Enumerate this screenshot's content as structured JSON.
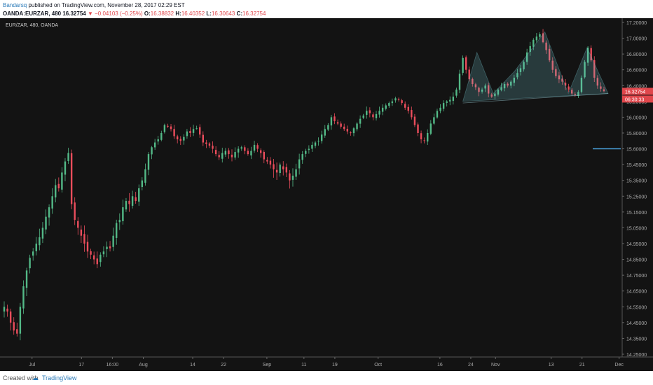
{
  "header": {
    "author": "Bandarsq",
    "published_text": " published on TradingView.com, November 28, 2017 02:29 EST",
    "symbol_line": "OANDA:EURZAR, 480",
    "last": "16.32754",
    "change": "−0.04103 (−0.25%)",
    "o_label": "O:",
    "o_val": "16.38832",
    "h_label": "H:",
    "h_val": "16.40352",
    "l_label": "L:",
    "l_val": "16.30643",
    "c_label": "C:",
    "c_val": "16.32754"
  },
  "footer": {
    "created_label": "Created with",
    "brand_icon": "tradingview-logo-icon",
    "brand_name": "TradingView"
  },
  "chart_data": {
    "type": "candlestick",
    "symbol_label": "EUR/ZAR, 480, OANDA",
    "ylim": [
      14.2,
      17.2
    ],
    "y_ticks": [
      "17.20000",
      "17.00000",
      "16.80000",
      "16.60000",
      "16.40000",
      "16.20000",
      "16.00000",
      "15.80000",
      "15.60000",
      "15.45000",
      "15.35000",
      "15.25000",
      "15.15000",
      "15.05000",
      "14.95000",
      "14.85000",
      "14.75000",
      "14.65000",
      "14.55000",
      "14.45000",
      "14.35000",
      "14.25000"
    ],
    "x_ticks": [
      "Jul",
      "17",
      "16:00",
      "Aug",
      "14",
      "22",
      "Sep",
      "11",
      "19",
      "Oct",
      "16",
      "24",
      "Nov",
      "13",
      "21",
      "Dec"
    ],
    "x_tick_positions": [
      0.07,
      0.15,
      0.2,
      0.25,
      0.33,
      0.38,
      0.45,
      0.51,
      0.56,
      0.63,
      0.73,
      0.78,
      0.82,
      0.91,
      0.96,
      1.02
    ],
    "price_label_last": "16.32754",
    "price_label_timer": "06:30:33",
    "horizontal_line_price": 15.6,
    "closes": [
      14.55,
      14.52,
      14.45,
      14.4,
      14.38,
      14.55,
      14.68,
      14.78,
      14.86,
      14.9,
      14.95,
      14.99,
      15.05,
      15.12,
      15.18,
      15.25,
      15.32,
      15.3,
      15.4,
      15.48,
      15.56,
      15.2,
      15.1,
      15.05,
      15.0,
      14.95,
      14.9,
      14.88,
      14.85,
      14.82,
      14.88,
      14.9,
      14.93,
      14.92,
      15.0,
      15.08,
      15.1,
      15.18,
      15.22,
      15.2,
      15.25,
      15.22,
      15.3,
      15.35,
      15.42,
      15.55,
      15.62,
      15.68,
      15.72,
      15.8,
      15.9,
      15.88,
      15.85,
      15.76,
      15.72,
      15.7,
      15.75,
      15.82,
      15.8,
      15.85,
      15.86,
      15.78,
      15.68,
      15.66,
      15.64,
      15.6,
      15.55,
      15.52,
      15.56,
      15.58,
      15.55,
      15.52,
      15.57,
      15.6,
      15.62,
      15.58,
      15.55,
      15.58,
      15.65,
      15.6,
      15.56,
      15.5,
      15.48,
      15.45,
      15.42,
      15.4,
      15.45,
      15.42,
      15.4,
      15.35,
      15.38,
      15.42,
      15.5,
      15.55,
      15.58,
      15.6,
      15.65,
      15.68,
      15.7,
      15.78,
      15.85,
      15.9,
      16.0,
      15.95,
      15.92,
      15.88,
      15.85,
      15.82,
      15.8,
      15.86,
      15.92,
      15.98,
      16.02,
      16.08,
      16.05,
      16.0,
      16.04,
      16.08,
      16.12,
      16.15,
      16.18,
      16.2,
      16.24,
      16.22,
      16.18,
      16.12,
      16.08,
      16.0,
      15.9,
      15.8,
      15.72,
      15.7,
      15.8,
      15.92,
      16.0,
      16.08,
      16.12,
      16.18,
      16.2,
      16.22,
      16.26,
      16.35,
      16.55,
      16.75,
      16.6,
      16.48,
      16.42,
      16.38,
      16.32,
      16.35,
      16.4,
      16.3,
      16.26,
      16.3,
      16.35,
      16.38,
      16.42,
      16.4,
      16.45,
      16.5,
      16.56,
      16.62,
      16.7,
      16.82,
      16.9,
      16.98,
      17.02,
      17.05,
      16.95,
      16.85,
      16.72,
      16.6,
      16.52,
      16.48,
      16.45,
      16.4,
      16.35,
      16.3,
      16.28,
      16.32,
      16.5,
      16.7,
      16.88,
      16.72,
      16.5,
      16.4,
      16.36,
      16.33
    ],
    "pattern_polygon_prices": [
      [
        0,
        16.2
      ],
      [
        0.06,
        16.82
      ],
      [
        0.13,
        16.3
      ],
      [
        0.22,
        16.58
      ],
      [
        0.35,
        17.08
      ],
      [
        0.45,
        16.3
      ],
      [
        0.53,
        16.88
      ],
      [
        0.62,
        16.3
      ],
      [
        0.62,
        16.3
      ]
    ],
    "pattern_baseline": [
      [
        0,
        16.18
      ],
      [
        0.62,
        16.3
      ]
    ]
  }
}
